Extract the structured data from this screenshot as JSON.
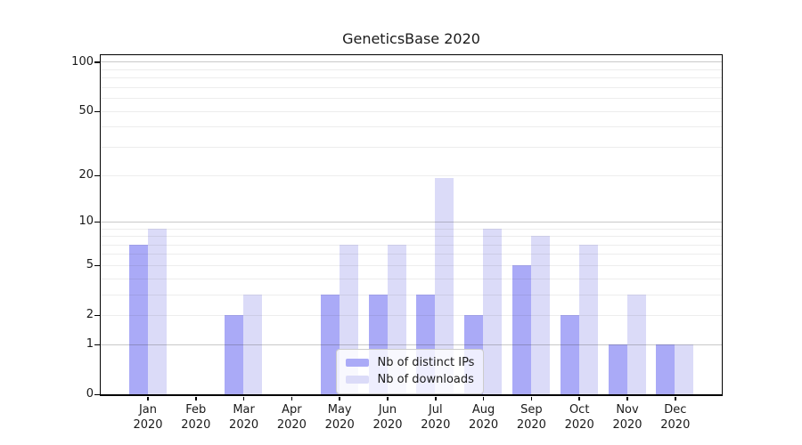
{
  "title": "GeneticsBase 2020",
  "chart_data": {
    "type": "bar",
    "title": "GeneticsBase 2020",
    "xlabel": "",
    "ylabel": "",
    "y_scale": "symlog: position ~ log10(1+v)",
    "ylim": [
      0,
      110
    ],
    "y_ticks": [
      0,
      1,
      2,
      5,
      10,
      20,
      50,
      100
    ],
    "y_major_gridlines": [
      1,
      10,
      100
    ],
    "y_minor_gridlines": [
      2,
      3,
      4,
      5,
      6,
      7,
      8,
      9,
      20,
      30,
      40,
      50,
      60,
      70,
      80,
      90
    ],
    "grid": true,
    "legend_position": "bottom-center-inside",
    "categories": [
      "Jan 2020",
      "Feb 2020",
      "Mar 2020",
      "Apr 2020",
      "May 2020",
      "Jun 2020",
      "Jul 2020",
      "Aug 2020",
      "Sep 2020",
      "Oct 2020",
      "Nov 2020",
      "Dec 2020"
    ],
    "series": [
      {
        "name": "Nb of distinct IPs",
        "color": "#aaaaf7",
        "values": [
          7,
          0,
          2,
          0,
          3,
          3,
          3,
          2,
          5,
          2,
          1,
          1
        ]
      },
      {
        "name": "Nb of downloads",
        "color": "#dbdbf8",
        "values": [
          9,
          0,
          3,
          0,
          7,
          7,
          19,
          9,
          8,
          7,
          3,
          1
        ]
      }
    ]
  }
}
